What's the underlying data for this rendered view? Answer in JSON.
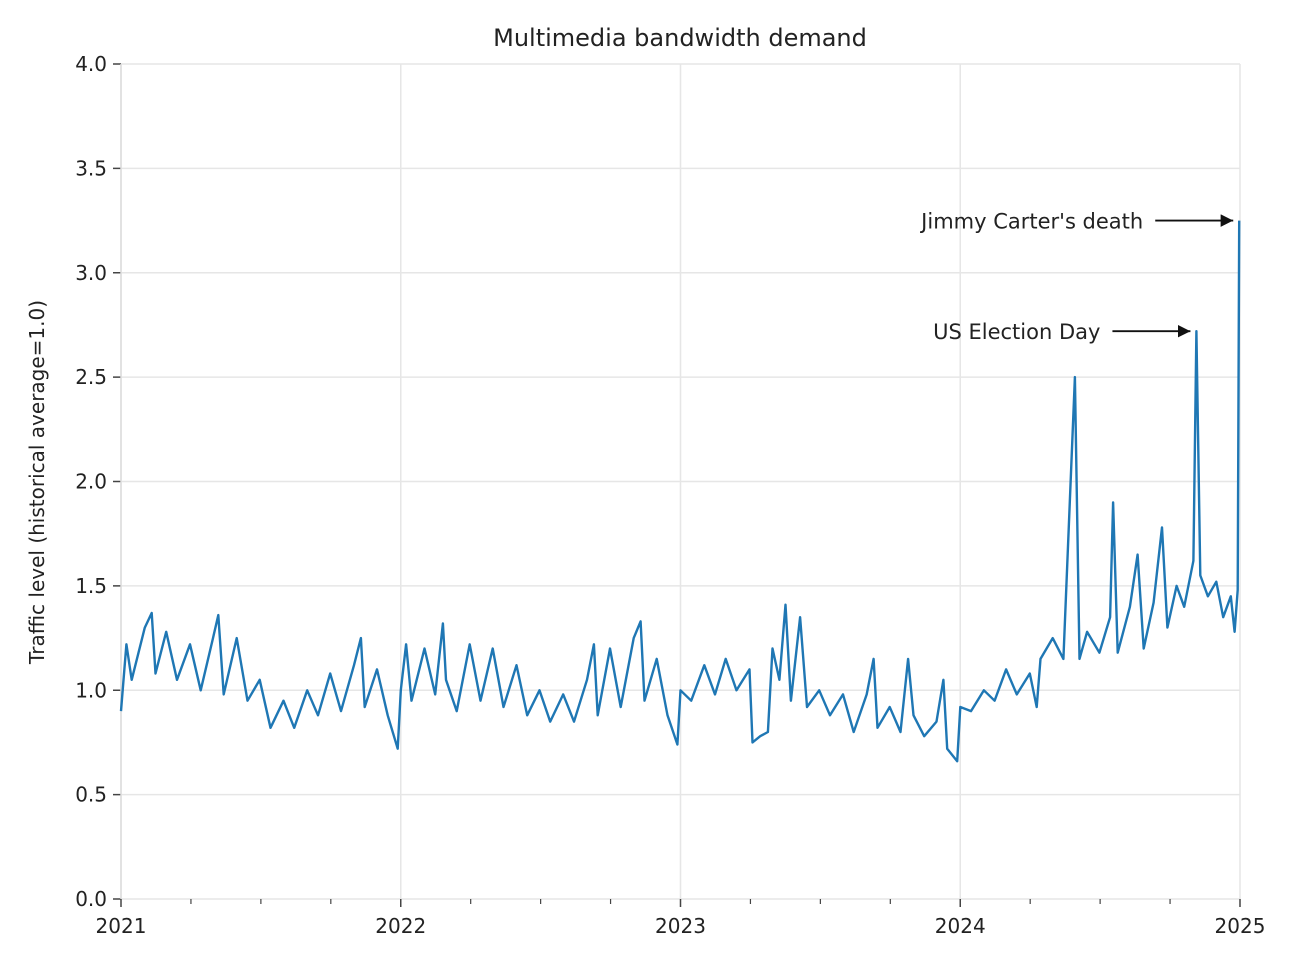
{
  "chart_data": {
    "type": "line",
    "title": "Multimedia bandwidth demand",
    "xlabel": "",
    "ylabel": "Traffic level (historical average=1.0)",
    "xlim": [
      "2021-01-01",
      "2025-01-01"
    ],
    "ylim": [
      0,
      4
    ],
    "grid": true,
    "x_ticks": [
      "2021",
      "2022",
      "2023",
      "2024",
      "2025"
    ],
    "y_ticks": [
      "0.0",
      "0.5",
      "1.0",
      "1.5",
      "2.0",
      "2.5",
      "3.0",
      "3.5",
      "4.0"
    ],
    "line_color": "#1f77b4",
    "annotations": [
      {
        "text": "Jimmy Carter's death",
        "x": "2024-12-31",
        "y": 3.25
      },
      {
        "text": "US Election Day",
        "x": "2024-11-05",
        "y": 2.72
      }
    ],
    "series": [
      {
        "points": [
          [
            "2021-01-01",
            0.9
          ],
          [
            "2021-01-08",
            1.22
          ],
          [
            "2021-01-15",
            1.05
          ],
          [
            "2021-02-01",
            1.3
          ],
          [
            "2021-02-10",
            1.37
          ],
          [
            "2021-02-15",
            1.08
          ],
          [
            "2021-03-01",
            1.28
          ],
          [
            "2021-03-15",
            1.05
          ],
          [
            "2021-04-01",
            1.22
          ],
          [
            "2021-04-15",
            1.0
          ],
          [
            "2021-05-01",
            1.25
          ],
          [
            "2021-05-08",
            1.36
          ],
          [
            "2021-05-15",
            0.98
          ],
          [
            "2021-06-01",
            1.25
          ],
          [
            "2021-06-15",
            0.95
          ],
          [
            "2021-07-01",
            1.05
          ],
          [
            "2021-07-15",
            0.82
          ],
          [
            "2021-08-01",
            0.95
          ],
          [
            "2021-08-15",
            0.82
          ],
          [
            "2021-09-01",
            1.0
          ],
          [
            "2021-09-15",
            0.88
          ],
          [
            "2021-10-01",
            1.08
          ],
          [
            "2021-10-15",
            0.9
          ],
          [
            "2021-11-01",
            1.12
          ],
          [
            "2021-11-10",
            1.25
          ],
          [
            "2021-11-15",
            0.92
          ],
          [
            "2021-12-01",
            1.1
          ],
          [
            "2021-12-15",
            0.88
          ],
          [
            "2021-12-28",
            0.72
          ],
          [
            "2022-01-01",
            1.0
          ],
          [
            "2022-01-08",
            1.22
          ],
          [
            "2022-01-15",
            0.95
          ],
          [
            "2022-02-01",
            1.2
          ],
          [
            "2022-02-15",
            0.98
          ],
          [
            "2022-02-25",
            1.32
          ],
          [
            "2022-03-01",
            1.05
          ],
          [
            "2022-03-15",
            0.9
          ],
          [
            "2022-04-01",
            1.22
          ],
          [
            "2022-04-15",
            0.95
          ],
          [
            "2022-05-01",
            1.2
          ],
          [
            "2022-05-15",
            0.92
          ],
          [
            "2022-06-01",
            1.12
          ],
          [
            "2022-06-15",
            0.88
          ],
          [
            "2022-07-01",
            1.0
          ],
          [
            "2022-07-15",
            0.85
          ],
          [
            "2022-08-01",
            0.98
          ],
          [
            "2022-08-15",
            0.85
          ],
          [
            "2022-09-01",
            1.05
          ],
          [
            "2022-09-10",
            1.22
          ],
          [
            "2022-09-15",
            0.88
          ],
          [
            "2022-10-01",
            1.2
          ],
          [
            "2022-10-15",
            0.92
          ],
          [
            "2022-11-01",
            1.25
          ],
          [
            "2022-11-10",
            1.33
          ],
          [
            "2022-11-15",
            0.95
          ],
          [
            "2022-12-01",
            1.15
          ],
          [
            "2022-12-15",
            0.88
          ],
          [
            "2022-12-28",
            0.74
          ],
          [
            "2023-01-01",
            1.0
          ],
          [
            "2023-01-15",
            0.95
          ],
          [
            "2023-02-01",
            1.12
          ],
          [
            "2023-02-15",
            0.98
          ],
          [
            "2023-03-01",
            1.15
          ],
          [
            "2023-03-15",
            1.0
          ],
          [
            "2023-04-01",
            1.1
          ],
          [
            "2023-04-05",
            0.75
          ],
          [
            "2023-04-15",
            0.78
          ],
          [
            "2023-04-25",
            0.8
          ],
          [
            "2023-05-01",
            1.2
          ],
          [
            "2023-05-10",
            1.05
          ],
          [
            "2023-05-18",
            1.41
          ],
          [
            "2023-05-25",
            0.95
          ],
          [
            "2023-06-06",
            1.35
          ],
          [
            "2023-06-15",
            0.92
          ],
          [
            "2023-07-01",
            1.0
          ],
          [
            "2023-07-15",
            0.88
          ],
          [
            "2023-08-01",
            0.98
          ],
          [
            "2023-08-15",
            0.8
          ],
          [
            "2023-09-01",
            0.98
          ],
          [
            "2023-09-10",
            1.15
          ],
          [
            "2023-09-15",
            0.82
          ],
          [
            "2023-10-01",
            0.92
          ],
          [
            "2023-10-15",
            0.8
          ],
          [
            "2023-10-25",
            1.15
          ],
          [
            "2023-11-01",
            0.88
          ],
          [
            "2023-11-15",
            0.78
          ],
          [
            "2023-12-01",
            0.85
          ],
          [
            "2023-12-10",
            1.05
          ],
          [
            "2023-12-15",
            0.72
          ],
          [
            "2023-12-28",
            0.66
          ],
          [
            "2024-01-01",
            0.92
          ],
          [
            "2024-01-15",
            0.9
          ],
          [
            "2024-02-01",
            1.0
          ],
          [
            "2024-02-15",
            0.95
          ],
          [
            "2024-03-01",
            1.1
          ],
          [
            "2024-03-15",
            0.98
          ],
          [
            "2024-04-01",
            1.08
          ],
          [
            "2024-04-10",
            0.92
          ],
          [
            "2024-04-15",
            1.15
          ],
          [
            "2024-05-01",
            1.25
          ],
          [
            "2024-05-15",
            1.15
          ],
          [
            "2024-05-30",
            2.5
          ],
          [
            "2024-06-05",
            1.15
          ],
          [
            "2024-06-15",
            1.28
          ],
          [
            "2024-07-01",
            1.18
          ],
          [
            "2024-07-15",
            1.35
          ],
          [
            "2024-07-19",
            1.9
          ],
          [
            "2024-07-25",
            1.18
          ],
          [
            "2024-08-10",
            1.4
          ],
          [
            "2024-08-20",
            1.65
          ],
          [
            "2024-08-28",
            1.2
          ],
          [
            "2024-09-10",
            1.42
          ],
          [
            "2024-09-21",
            1.78
          ],
          [
            "2024-09-28",
            1.3
          ],
          [
            "2024-10-10",
            1.5
          ],
          [
            "2024-10-20",
            1.4
          ],
          [
            "2024-11-01",
            1.62
          ],
          [
            "2024-11-05",
            2.72
          ],
          [
            "2024-11-10",
            1.55
          ],
          [
            "2024-11-20",
            1.45
          ],
          [
            "2024-12-01",
            1.52
          ],
          [
            "2024-12-10",
            1.35
          ],
          [
            "2024-12-20",
            1.45
          ],
          [
            "2024-12-25",
            1.28
          ],
          [
            "2024-12-29",
            1.48
          ],
          [
            "2024-12-31",
            3.25
          ]
        ]
      }
    ]
  }
}
